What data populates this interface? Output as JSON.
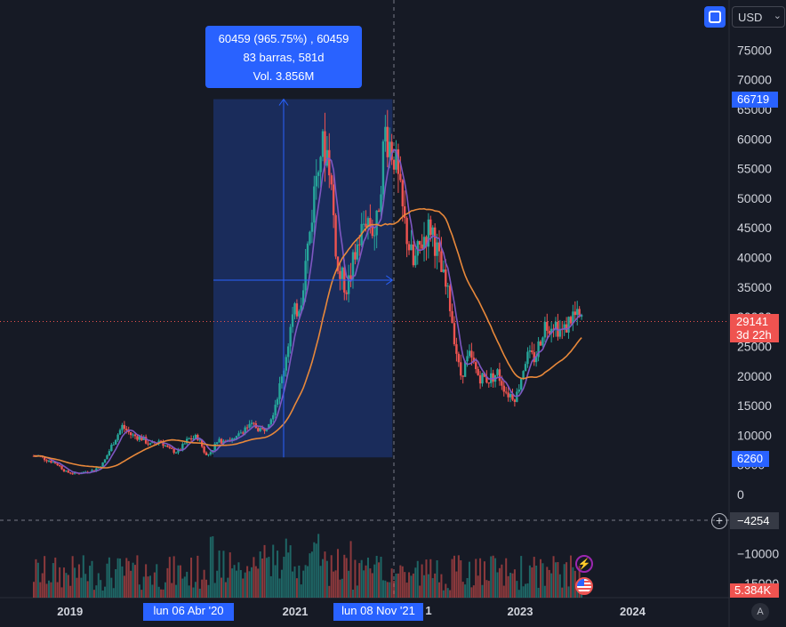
{
  "toolbar": {
    "currency": "USD",
    "currency_chevron_icon": "chevron-down-icon",
    "frame_icon": "square-frame-icon"
  },
  "tooltip": {
    "line1": "60459 (965.75%) , 60459",
    "line2": "83 barras, 581d",
    "line3": "Vol. 3.856M"
  },
  "price_labels": {
    "high": "66719",
    "current": "29141",
    "countdown": "3d 22h",
    "low": "6260",
    "crosshair": "−4254",
    "volume": "5.384K"
  },
  "date_labels": {
    "start": "lun 06 Abr '20",
    "end": "lun 08 Nov '21",
    "end_suffix": "1"
  },
  "auto_label": "A",
  "icons": {
    "lightning": "lightning-icon",
    "flag": "us-flag-icon",
    "plus": "+"
  },
  "colors": {
    "background": "#161a25",
    "up": "#26a69a",
    "down": "#ef5350",
    "ma_fast": "#7e57c2",
    "ma_slow": "#e8883a",
    "selection": "#2962ff",
    "current_price": "#ef5350"
  },
  "chart_data": {
    "type": "candlestick",
    "symbol_currency": "USD",
    "x_ticks": [
      "2019",
      "2021",
      "2023",
      "2024"
    ],
    "y_ticks": [
      75000,
      70000,
      65000,
      60000,
      55000,
      50000,
      45000,
      40000,
      35000,
      30000,
      25000,
      20000,
      15000,
      10000,
      5000,
      0,
      -10000,
      -15000
    ],
    "ylim": [
      -16000,
      78000
    ],
    "measure": {
      "start_date": "2020-04-06",
      "end_date": "2021-11-08",
      "change": 60459,
      "change_pct": 965.75,
      "bars": 83,
      "days": 581,
      "volume": "3.856M",
      "from_price": 6260,
      "to_price": 66719
    },
    "close_series": [
      {
        "date": "2018-09",
        "close": 6500
      },
      {
        "date": "2018-11",
        "close": 5200
      },
      {
        "date": "2018-12",
        "close": 3800
      },
      {
        "date": "2019-01",
        "close": 3500
      },
      {
        "date": "2019-03",
        "close": 4100
      },
      {
        "date": "2019-04",
        "close": 5300
      },
      {
        "date": "2019-05",
        "close": 8600
      },
      {
        "date": "2019-06",
        "close": 11500
      },
      {
        "date": "2019-07",
        "close": 10000
      },
      {
        "date": "2019-08",
        "close": 9600
      },
      {
        "date": "2019-09",
        "close": 8300
      },
      {
        "date": "2019-10",
        "close": 9200
      },
      {
        "date": "2019-11",
        "close": 7500
      },
      {
        "date": "2019-12",
        "close": 7200
      },
      {
        "date": "2020-01",
        "close": 9300
      },
      {
        "date": "2020-02",
        "close": 9700
      },
      {
        "date": "2020-03",
        "close": 6400
      },
      {
        "date": "2020-04",
        "close": 8600
      },
      {
        "date": "2020-05",
        "close": 9500
      },
      {
        "date": "2020-06",
        "close": 9100
      },
      {
        "date": "2020-07",
        "close": 11300
      },
      {
        "date": "2020-08",
        "close": 11600
      },
      {
        "date": "2020-09",
        "close": 10800
      },
      {
        "date": "2020-10",
        "close": 13800
      },
      {
        "date": "2020-11",
        "close": 19700
      },
      {
        "date": "2020-12",
        "close": 29000
      },
      {
        "date": "2021-01",
        "close": 33100
      },
      {
        "date": "2021-02",
        "close": 45200
      },
      {
        "date": "2021-03",
        "close": 58800
      },
      {
        "date": "2021-04",
        "close": 57700
      },
      {
        "date": "2021-05",
        "close": 37300
      },
      {
        "date": "2021-06",
        "close": 35000
      },
      {
        "date": "2021-07",
        "close": 41500
      },
      {
        "date": "2021-08",
        "close": 47100
      },
      {
        "date": "2021-09",
        "close": 43800
      },
      {
        "date": "2021-10",
        "close": 61300
      },
      {
        "date": "2021-11",
        "close": 57000
      },
      {
        "date": "2021-12",
        "close": 46200
      },
      {
        "date": "2022-01",
        "close": 38500
      },
      {
        "date": "2022-02",
        "close": 43200
      },
      {
        "date": "2022-03",
        "close": 45500
      },
      {
        "date": "2022-04",
        "close": 37700
      },
      {
        "date": "2022-05",
        "close": 31800
      },
      {
        "date": "2022-06",
        "close": 19900
      },
      {
        "date": "2022-07",
        "close": 23300
      },
      {
        "date": "2022-08",
        "close": 20000
      },
      {
        "date": "2022-09",
        "close": 19400
      },
      {
        "date": "2022-10",
        "close": 20500
      },
      {
        "date": "2022-11",
        "close": 17100
      },
      {
        "date": "2022-12",
        "close": 16500
      },
      {
        "date": "2023-01",
        "close": 23100
      },
      {
        "date": "2023-02",
        "close": 23100
      },
      {
        "date": "2023-03",
        "close": 28500
      },
      {
        "date": "2023-04",
        "close": 29200
      },
      {
        "date": "2023-05",
        "close": 27200
      },
      {
        "date": "2023-06",
        "close": 30400
      },
      {
        "date": "2023-07",
        "close": 29200
      }
    ]
  }
}
